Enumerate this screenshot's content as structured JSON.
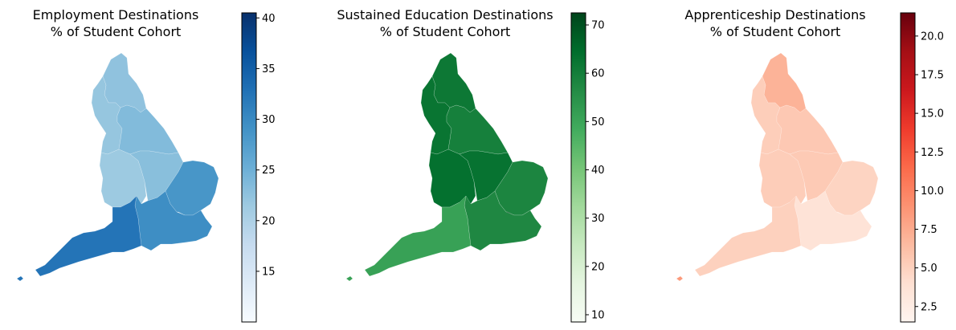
{
  "panels": [
    {
      "id": "employment",
      "title_line1": "Employment Destinations",
      "title_line2": "% of Student Cohort",
      "colormap": [
        "#f7fbff",
        "#deebf7",
        "#c6dbef",
        "#9ecae1",
        "#6baed6",
        "#4292c6",
        "#2171b5",
        "#08519c",
        "#08306b"
      ],
      "range": [
        10.0,
        40.5
      ],
      "ticks": [
        15,
        20,
        25,
        30,
        35,
        40
      ],
      "tick_labels": [
        "15",
        "20",
        "25",
        "30",
        "35",
        "40"
      ],
      "values": {
        "north_east": 22.5,
        "north_west": 22.0,
        "yorkshire": 23.5,
        "west_midlands": 21.5,
        "east_midlands": 23.0,
        "east": 28.5,
        "london": 13.5,
        "south_east": 29.5,
        "south_west": 32.5,
        "isles": 32.5
      }
    },
    {
      "id": "education",
      "title_line1": "Sustained Education Destinations",
      "title_line2": "% of Student Cohort",
      "colormap": [
        "#f7fcf5",
        "#e5f5e0",
        "#c7e9c0",
        "#a1d99b",
        "#74c476",
        "#41ab5d",
        "#238b45",
        "#006d2c",
        "#00441b"
      ],
      "range": [
        8.5,
        72.5
      ],
      "ticks": [
        10,
        20,
        30,
        40,
        50,
        60,
        70
      ],
      "tick_labels": [
        "10",
        "20",
        "30",
        "40",
        "50",
        "60",
        "70"
      ],
      "values": {
        "north_east": 61.5,
        "north_west": 62.5,
        "yorkshire": 59.5,
        "west_midlands": 63.5,
        "east_midlands": 63.0,
        "east": 58.0,
        "london": 71.5,
        "south_east": 57.5,
        "south_west": 51.0,
        "isles": 51.0
      }
    },
    {
      "id": "apprenticeship",
      "title_line1": "Apprenticeship Destinations",
      "title_line2": "% of Student Cohort",
      "colormap": [
        "#fff5f0",
        "#fee0d2",
        "#fcbba1",
        "#fc9272",
        "#fb6a4a",
        "#ef3b2c",
        "#cb181d",
        "#a50f15",
        "#67000d"
      ],
      "range": [
        1.5,
        21.5
      ],
      "ticks": [
        2.5,
        5.0,
        7.5,
        10.0,
        12.5,
        15.0,
        17.5,
        20.0
      ],
      "tick_labels": [
        "2.5",
        "5.0",
        "7.5",
        "10.0",
        "12.5",
        "15.0",
        "17.5",
        "20.0"
      ],
      "values": {
        "north_east": 7.0,
        "north_west": 5.2,
        "yorkshire": 5.6,
        "west_midlands": 5.3,
        "east_midlands": 5.5,
        "east": 4.8,
        "london": 2.6,
        "south_east": 3.6,
        "south_west": 5.0,
        "isles": 8.5
      }
    }
  ]
}
